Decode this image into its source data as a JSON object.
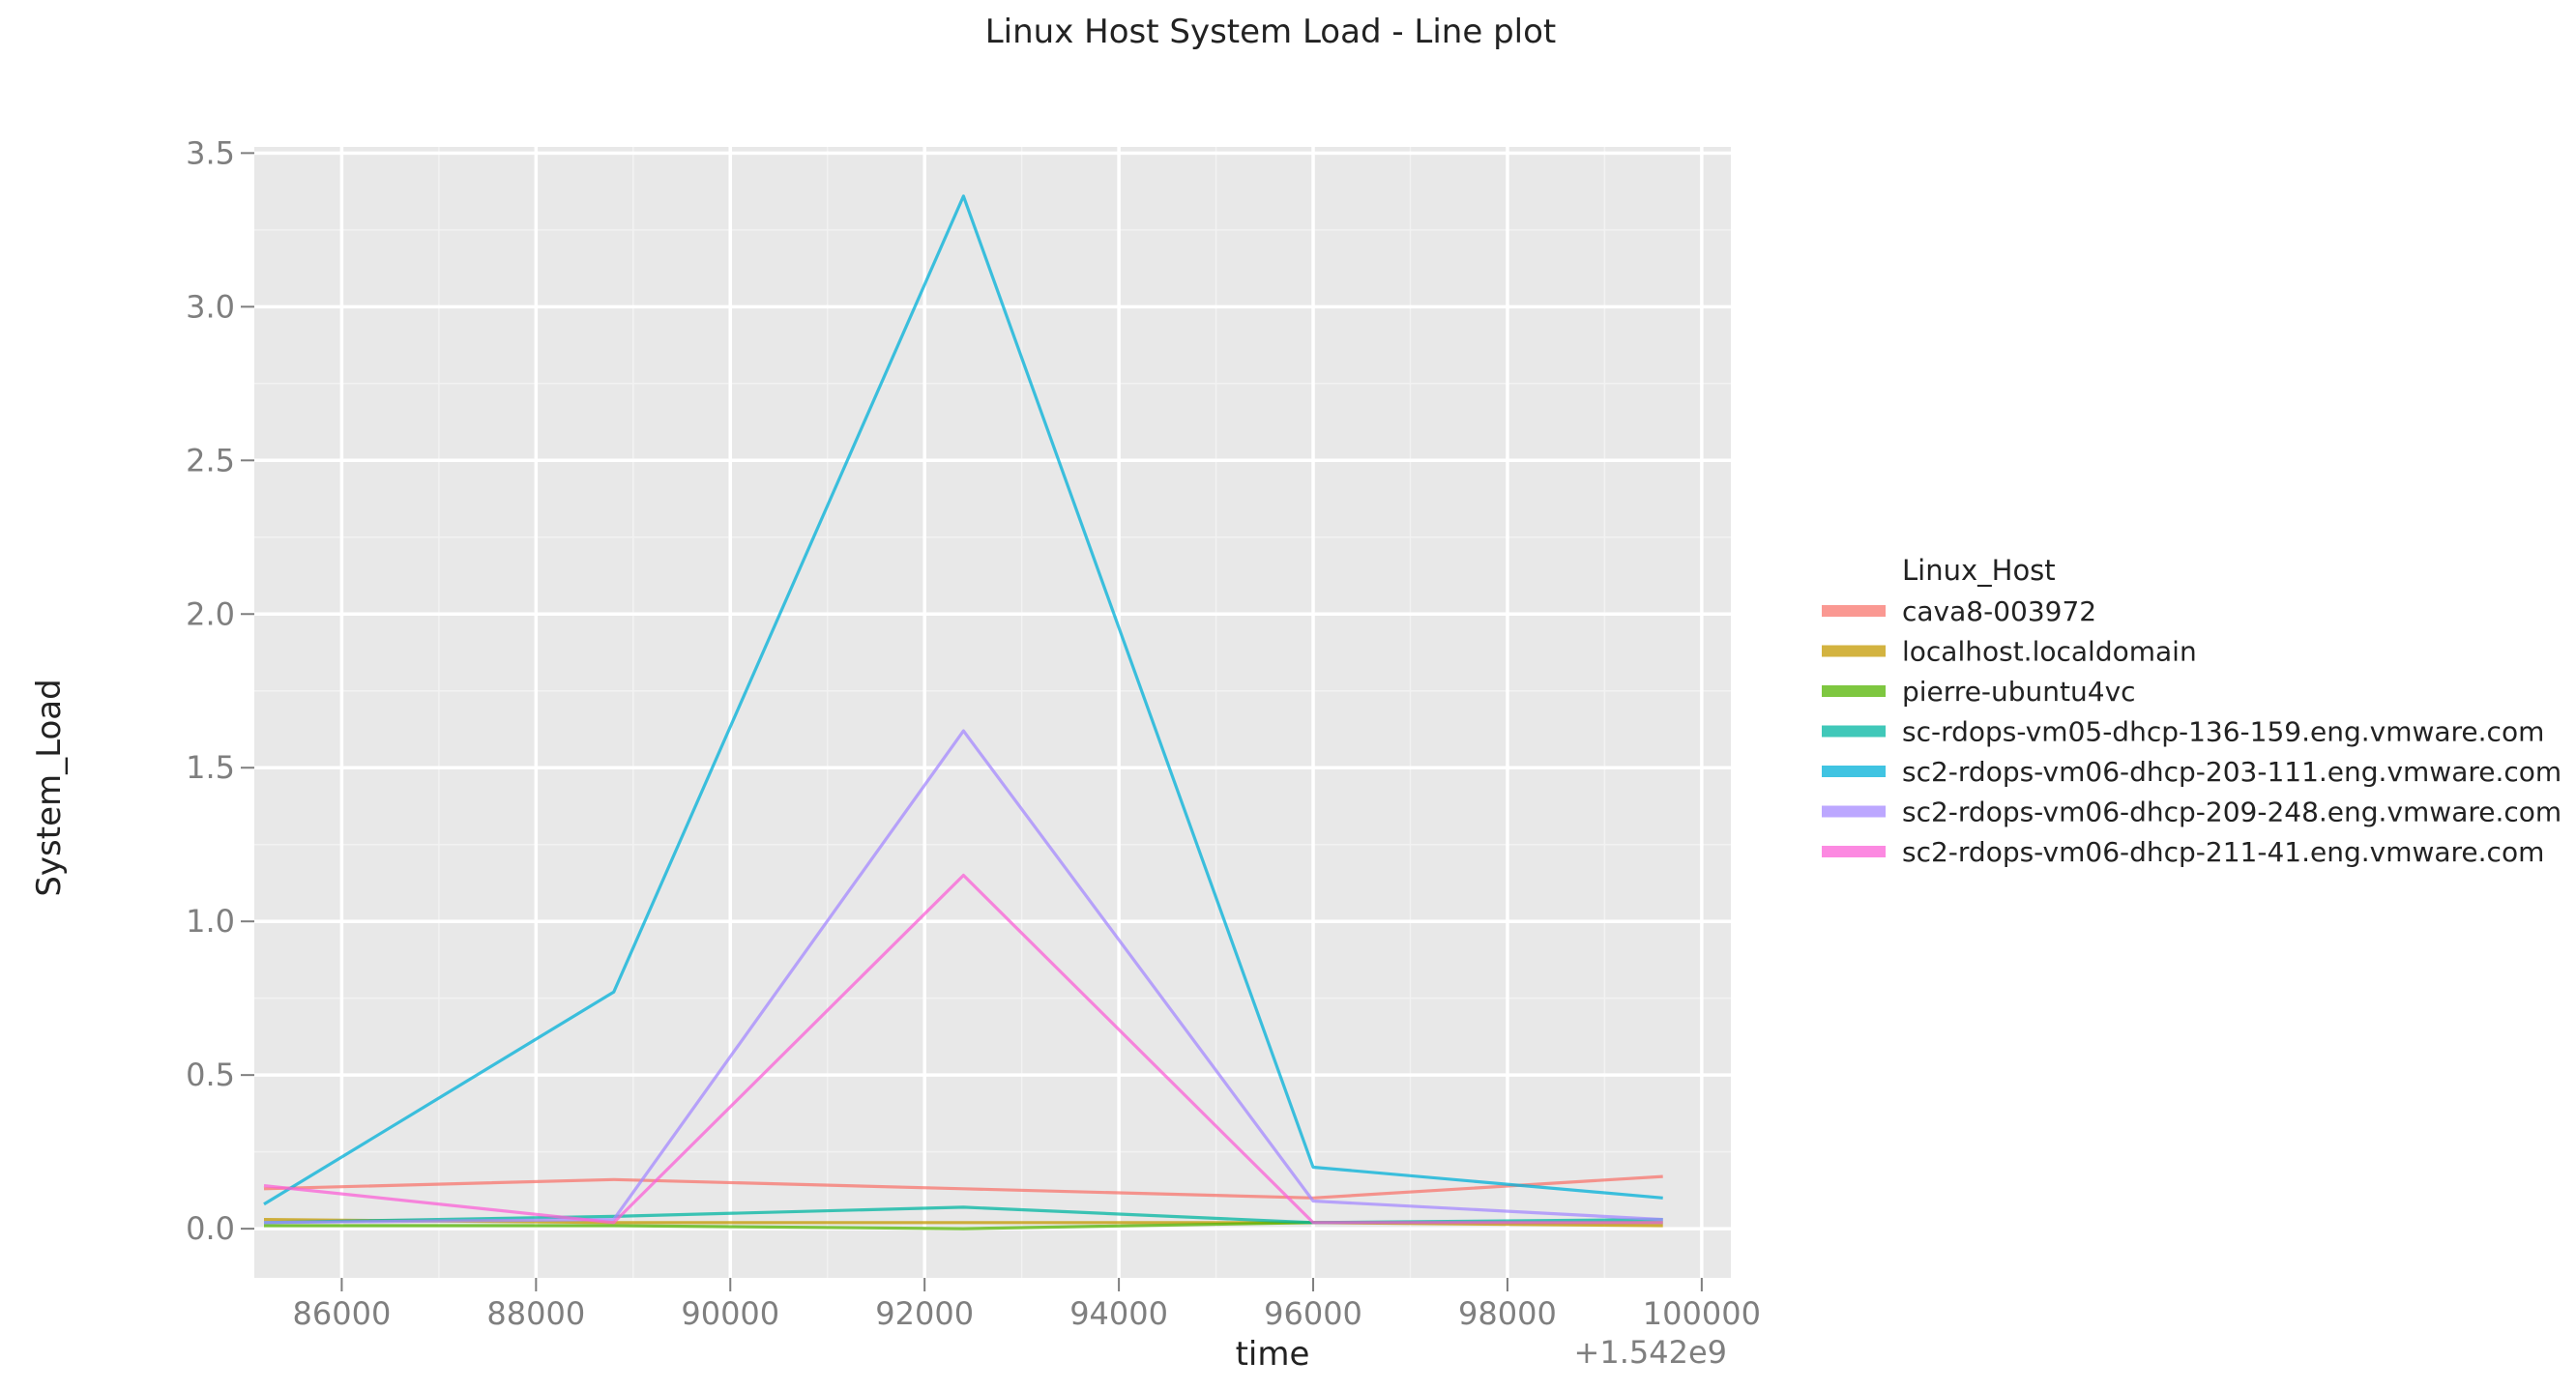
{
  "chart_data": {
    "type": "line",
    "title": "Linux Host System Load - Line plot",
    "xlabel": "time",
    "ylabel": "System_Load",
    "x_offset_label": "+1.542e9",
    "xlim": [
      85100,
      100300
    ],
    "ylim": [
      -0.16,
      3.52
    ],
    "x_ticks": [
      86000,
      88000,
      90000,
      92000,
      94000,
      96000,
      98000,
      100000
    ],
    "x_tick_labels": [
      "86000",
      "88000",
      "90000",
      "92000",
      "94000",
      "96000",
      "98000",
      "100000"
    ],
    "y_ticks": [
      0.0,
      0.5,
      1.0,
      1.5,
      2.0,
      2.5,
      3.0,
      3.5
    ],
    "y_tick_labels": [
      "0.0",
      "0.5",
      "1.0",
      "1.5",
      "2.0",
      "2.5",
      "3.0",
      "3.5"
    ],
    "grid": true,
    "legend_title": "Linux_Host",
    "legend_position": "right",
    "x": [
      85200,
      88800,
      92400,
      96000,
      99600
    ],
    "series": [
      {
        "name": "cava8-003972",
        "color": "#f8766d",
        "values": [
          0.13,
          0.16,
          0.13,
          0.1,
          0.17
        ]
      },
      {
        "name": "localhost.localdomain",
        "color": "#c49a00",
        "values": [
          0.03,
          0.02,
          0.02,
          0.02,
          0.01
        ]
      },
      {
        "name": "pierre-ubuntu4vc",
        "color": "#53b400",
        "values": [
          0.01,
          0.01,
          0.0,
          0.02,
          0.02
        ]
      },
      {
        "name": "sc-rdops-vm05-dhcp-136-159.eng.vmware.com",
        "color": "#00b6a1",
        "values": [
          0.02,
          0.04,
          0.07,
          0.02,
          0.03
        ]
      },
      {
        "name": "sc2-rdops-vm06-dhcp-203-111.eng.vmware.com",
        "color": "#00b0d8",
        "values": [
          0.08,
          0.77,
          3.36,
          0.2,
          0.1
        ]
      },
      {
        "name": "sc2-rdops-vm06-dhcp-209-248.eng.vmware.com",
        "color": "#a58aff",
        "values": [
          0.02,
          0.03,
          1.62,
          0.09,
          0.03
        ]
      },
      {
        "name": "sc2-rdops-vm06-dhcp-211-41.eng.vmware.com",
        "color": "#fb61d7",
        "values": [
          0.14,
          0.02,
          1.15,
          0.02,
          0.02
        ]
      }
    ]
  }
}
